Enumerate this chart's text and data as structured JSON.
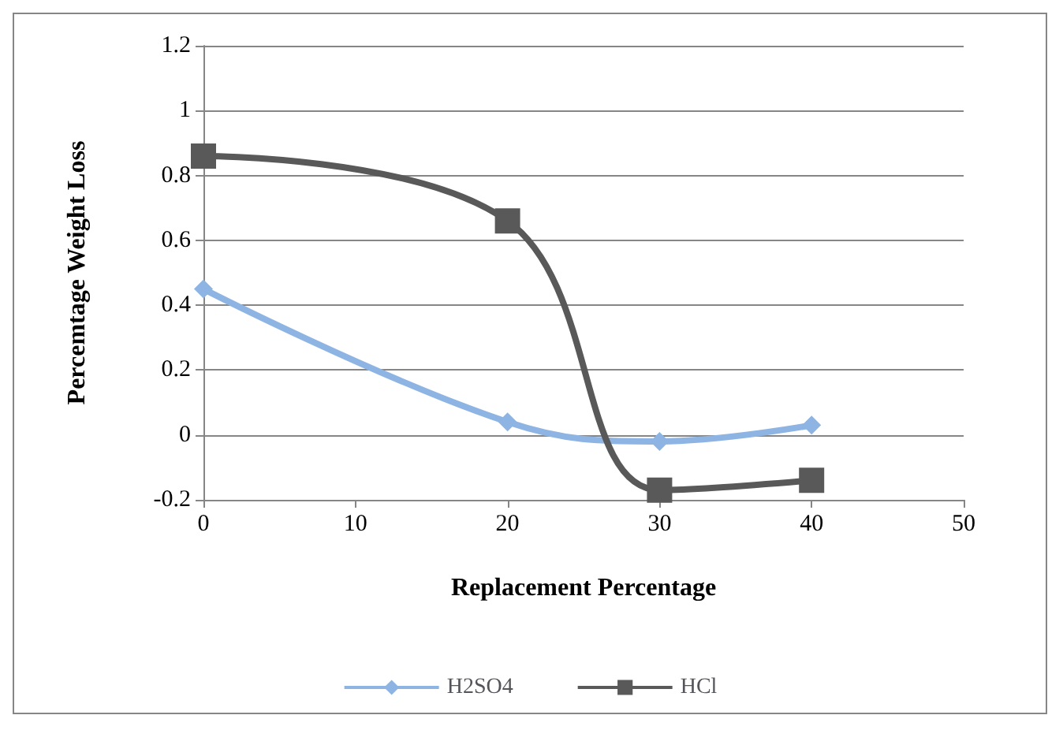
{
  "chart_data": {
    "type": "line",
    "xlabel": "Replacement Percentage",
    "ylabel": "Percemtage Weight Loss",
    "x": [
      0,
      20,
      30,
      40
    ],
    "xlim": [
      0,
      50
    ],
    "xticks": [
      0,
      10,
      20,
      30,
      40,
      50
    ],
    "ylim": [
      -0.2,
      1.2
    ],
    "yticks": [
      -0.2,
      0,
      0.2,
      0.4,
      0.6,
      0.8,
      1,
      1.2
    ],
    "grid": "y",
    "legend": "bottom",
    "series": [
      {
        "name": "H2SO4",
        "color": "#8eb4e3",
        "marker": "diamond",
        "values": [
          0.45,
          0.04,
          -0.02,
          0.03
        ]
      },
      {
        "name": "HCl",
        "color": "#595959",
        "marker": "square",
        "values": [
          0.86,
          0.66,
          -0.17,
          -0.14
        ]
      }
    ]
  }
}
